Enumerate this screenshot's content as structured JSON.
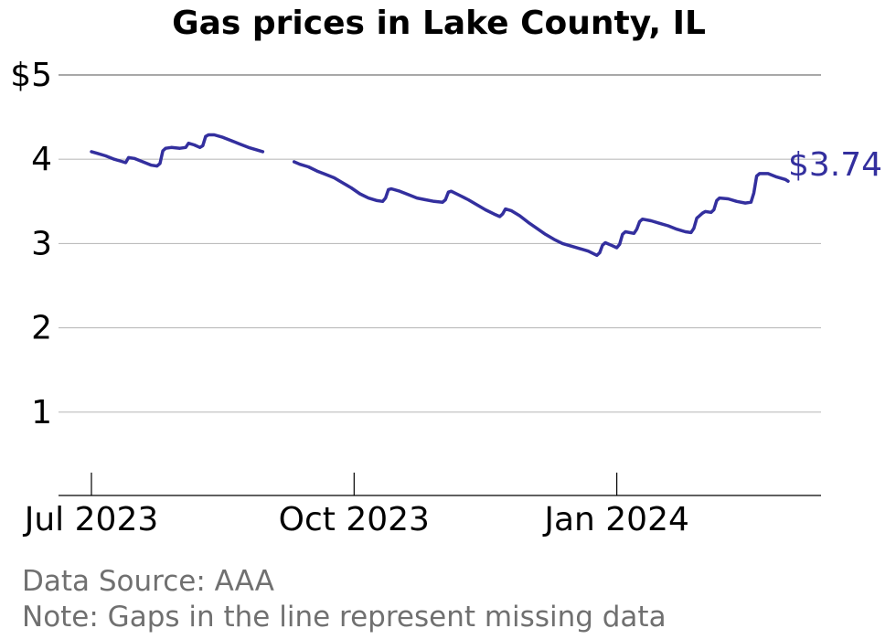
{
  "chart_data": {
    "type": "line",
    "title": "Gas prices in Lake County, IL",
    "xlabel": "",
    "ylabel": "",
    "y_ticks": [
      {
        "value": 5,
        "label": "$5"
      },
      {
        "value": 4,
        "label": "4"
      },
      {
        "value": 3,
        "label": "3"
      },
      {
        "value": 2,
        "label": "2"
      },
      {
        "value": 1,
        "label": "1"
      }
    ],
    "x_ticks": [
      {
        "date": "2023-07-01",
        "label": "Jul 2023"
      },
      {
        "date": "2023-10-01",
        "label": "Oct 2023"
      },
      {
        "date": "2024-01-01",
        "label": "Jan 2024"
      }
    ],
    "ylim": [
      0,
      5
    ],
    "xlim": [
      "2023-06-20",
      "2024-03-20"
    ],
    "grid": true,
    "line_color": "#332f9e",
    "end_label": "$3.74",
    "series": [
      {
        "segments": [
          [
            [
              "2023-07-01",
              4.09
            ],
            [
              "2023-07-03",
              4.07
            ],
            [
              "2023-07-06",
              4.04
            ],
            [
              "2023-07-09",
              4.0
            ],
            [
              "2023-07-11",
              3.98
            ],
            [
              "2023-07-12",
              3.97
            ],
            [
              "2023-07-13",
              3.96
            ],
            [
              "2023-07-14",
              4.02
            ],
            [
              "2023-07-16",
              4.01
            ],
            [
              "2023-07-19",
              3.97
            ],
            [
              "2023-07-22",
              3.93
            ],
            [
              "2023-07-24",
              3.92
            ],
            [
              "2023-07-25",
              3.95
            ],
            [
              "2023-07-26",
              4.1
            ],
            [
              "2023-07-27",
              4.13
            ],
            [
              "2023-07-29",
              4.14
            ],
            [
              "2023-08-01",
              4.13
            ],
            [
              "2023-08-03",
              4.14
            ],
            [
              "2023-08-04",
              4.19
            ],
            [
              "2023-08-06",
              4.17
            ],
            [
              "2023-08-08",
              4.14
            ],
            [
              "2023-08-09",
              4.16
            ],
            [
              "2023-08-10",
              4.27
            ],
            [
              "2023-08-11",
              4.29
            ],
            [
              "2023-08-13",
              4.29
            ],
            [
              "2023-08-16",
              4.26
            ],
            [
              "2023-08-19",
              4.22
            ],
            [
              "2023-08-22",
              4.18
            ],
            [
              "2023-08-25",
              4.14
            ],
            [
              "2023-08-28",
              4.11
            ],
            [
              "2023-08-30",
              4.09
            ]
          ],
          [
            [
              "2023-09-10",
              3.97
            ],
            [
              "2023-09-12",
              3.94
            ],
            [
              "2023-09-15",
              3.91
            ],
            [
              "2023-09-18",
              3.86
            ],
            [
              "2023-09-21",
              3.82
            ],
            [
              "2023-09-24",
              3.78
            ],
            [
              "2023-09-27",
              3.72
            ],
            [
              "2023-09-30",
              3.66
            ],
            [
              "2023-10-03",
              3.59
            ],
            [
              "2023-10-06",
              3.54
            ],
            [
              "2023-10-09",
              3.51
            ],
            [
              "2023-10-11",
              3.5
            ],
            [
              "2023-10-12",
              3.54
            ],
            [
              "2023-10-13",
              3.64
            ],
            [
              "2023-10-14",
              3.65
            ],
            [
              "2023-10-17",
              3.62
            ],
            [
              "2023-10-20",
              3.58
            ],
            [
              "2023-10-23",
              3.54
            ],
            [
              "2023-10-26",
              3.52
            ],
            [
              "2023-10-29",
              3.5
            ],
            [
              "2023-11-01",
              3.49
            ],
            [
              "2023-11-02",
              3.52
            ],
            [
              "2023-11-03",
              3.61
            ],
            [
              "2023-11-04",
              3.62
            ],
            [
              "2023-11-07",
              3.57
            ],
            [
              "2023-11-10",
              3.52
            ],
            [
              "2023-11-13",
              3.46
            ],
            [
              "2023-11-16",
              3.4
            ],
            [
              "2023-11-19",
              3.35
            ],
            [
              "2023-11-21",
              3.32
            ],
            [
              "2023-11-22",
              3.35
            ],
            [
              "2023-11-23",
              3.41
            ],
            [
              "2023-11-25",
              3.39
            ],
            [
              "2023-11-28",
              3.33
            ],
            [
              "2023-12-01",
              3.25
            ],
            [
              "2023-12-04",
              3.18
            ],
            [
              "2023-12-07",
              3.11
            ],
            [
              "2023-12-10",
              3.05
            ],
            [
              "2023-12-13",
              3.0
            ],
            [
              "2023-12-16",
              2.97
            ],
            [
              "2023-12-19",
              2.94
            ],
            [
              "2023-12-22",
              2.91
            ],
            [
              "2023-12-25",
              2.86
            ],
            [
              "2023-12-26",
              2.89
            ],
            [
              "2023-12-27",
              2.98
            ],
            [
              "2023-12-28",
              3.01
            ],
            [
              "2023-12-30",
              2.98
            ],
            [
              "2024-01-01",
              2.95
            ],
            [
              "2024-01-02",
              2.99
            ],
            [
              "2024-01-03",
              3.11
            ],
            [
              "2024-01-04",
              3.14
            ],
            [
              "2024-01-07",
              3.12
            ],
            [
              "2024-01-08",
              3.17
            ],
            [
              "2024-01-09",
              3.26
            ],
            [
              "2024-01-10",
              3.29
            ],
            [
              "2024-01-13",
              3.27
            ],
            [
              "2024-01-16",
              3.24
            ],
            [
              "2024-01-19",
              3.21
            ],
            [
              "2024-01-22",
              3.17
            ],
            [
              "2024-01-25",
              3.14
            ],
            [
              "2024-01-27",
              3.13
            ],
            [
              "2024-01-28",
              3.18
            ],
            [
              "2024-01-29",
              3.3
            ],
            [
              "2024-01-31",
              3.36
            ],
            [
              "2024-02-01",
              3.38
            ],
            [
              "2024-02-03",
              3.37
            ],
            [
              "2024-02-04",
              3.4
            ],
            [
              "2024-02-05",
              3.51
            ],
            [
              "2024-02-06",
              3.54
            ],
            [
              "2024-02-09",
              3.53
            ],
            [
              "2024-02-12",
              3.5
            ],
            [
              "2024-02-15",
              3.48
            ],
            [
              "2024-02-17",
              3.49
            ],
            [
              "2024-02-18",
              3.6
            ],
            [
              "2024-02-19",
              3.8
            ],
            [
              "2024-02-20",
              3.83
            ],
            [
              "2024-02-23",
              3.83
            ],
            [
              "2024-02-26",
              3.79
            ],
            [
              "2024-02-29",
              3.76
            ],
            [
              "2024-03-01",
              3.74
            ]
          ]
        ]
      }
    ]
  },
  "notes": {
    "source": "Data Source: AAA",
    "note": "Note: Gaps in the line represent missing data"
  }
}
